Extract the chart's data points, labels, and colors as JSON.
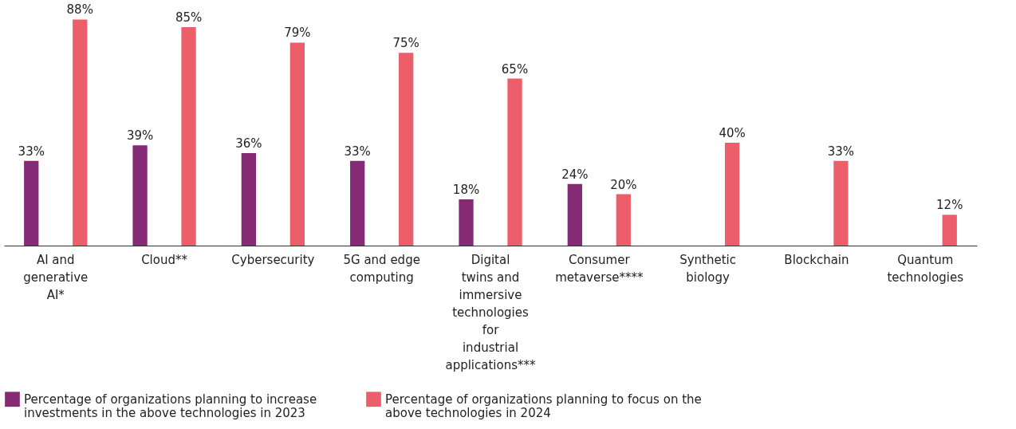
{
  "chart_data": {
    "type": "bar",
    "categories": [
      "AI and generative AI*",
      "Cloud**",
      "Cybersecurity",
      "5G and edge computing",
      "Digital twins and immersive technologies for industrial applications***",
      "Consumer metaverse****",
      "Synthetic biology",
      "Blockchain",
      "Quantum technologies"
    ],
    "series": [
      {
        "name": "Percentage of organizations planning to increase investments in the above technologies in 2023",
        "color": "#852b75",
        "values": [
          33,
          39,
          36,
          33,
          18,
          24,
          null,
          null,
          null
        ],
        "value_labels": [
          "33%",
          "39%",
          "36%",
          "33%",
          "18%",
          "24%",
          null,
          null,
          null
        ]
      },
      {
        "name": "Percentage of organizations planning to focus on the above technologies in 2024",
        "color": "#ec5f6a",
        "values": [
          88,
          85,
          79,
          75,
          65,
          20,
          40,
          33,
          12
        ],
        "value_labels": [
          "88%",
          "85%",
          "79%",
          "75%",
          "65%",
          "20%",
          "40%",
          "33%",
          "12%"
        ]
      }
    ],
    "legend": "bottom",
    "tick_labels": "x",
    "grid": false
  }
}
